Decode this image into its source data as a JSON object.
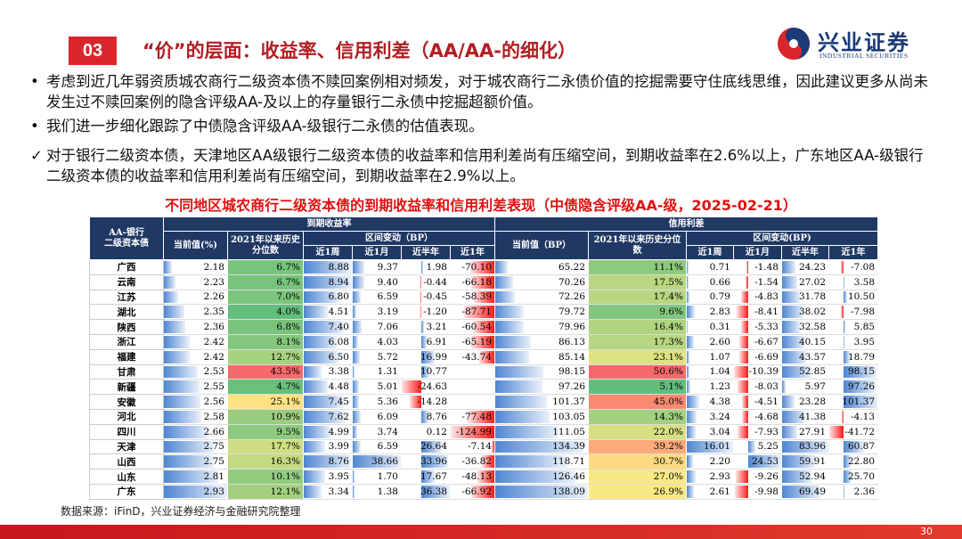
{
  "header": {
    "section_number": "03",
    "title": "“价”的层面：收益率、信用利差（AA/AA-的细化）",
    "logo_cn": "兴业证券",
    "logo_en": "INDUSTRIAL SECURITIES"
  },
  "bullets": [
    {
      "marker": "•",
      "text": "考虑到近几年弱资质城农商行二级资本债不赎回案例相对频发，对于城农商行二永债价值的挖掘需要守住底线思维，因此建议更多从尚未发生过不赎回案例的隐含评级AA-及以上的存量银行二永债中挖掘超额价值。"
    },
    {
      "marker": "•",
      "text": "我们进一步细化跟踪了中债隐含评级AA-级银行二永债的估值表现。"
    },
    {
      "marker": "✓",
      "text": "对于银行二级资本债，天津地区AA级银行二级资本债的收益率和信用利差尚有压缩空间，到期收益率在2.6%以上，广东地区AA-级银行二级资本债的收益率和信用利差尚有压缩空间，到期收益率在2.9%以上。"
    }
  ],
  "table": {
    "caption": "不同地区城农商行二级资本债的到期收益率和信用利差表现（中债隐含评级AA-级，2025-02-21）",
    "corner": [
      "AA-银行",
      "二级资本债"
    ],
    "group_yield": "到期收益率",
    "group_spread": "信用利差",
    "yield_cols": [
      "当前值(%)",
      "2021年以来历史分位数"
    ],
    "yield_change": "区间变动（BP）",
    "yield_periods": [
      "近1周",
      "近1月",
      "近半年",
      "近1年"
    ],
    "spread_cols": [
      "当前值（BP）",
      "2021年以来历史分位数"
    ],
    "spread_change": "区间变动(BP)",
    "spread_periods": [
      "近1周",
      "近1月",
      "近半年",
      "近1年"
    ],
    "rows": [
      [
        "广西",
        "2.18",
        "6.7%",
        "8.88",
        "9.37",
        "1.98",
        "-70.10",
        "65.22",
        "11.1%",
        "0.71",
        "-1.48",
        "24.23",
        "-7.08"
      ],
      [
        "云南",
        "2.23",
        "6.7%",
        "8.94",
        "9.40",
        "-0.44",
        "-66.18",
        "70.26",
        "17.5%",
        "0.66",
        "-1.54",
        "27.02",
        "3.58"
      ],
      [
        "江苏",
        "2.26",
        "7.0%",
        "6.80",
        "6.59",
        "-0.45",
        "-58.39",
        "72.26",
        "17.4%",
        "0.79",
        "-4.83",
        "31.78",
        "10.50"
      ],
      [
        "湖北",
        "2.35",
        "4.0%",
        "4.51",
        "3.19",
        "-1.20",
        "-87.71",
        "79.72",
        "9.6%",
        "2.83",
        "-8.41",
        "38.02",
        "-7.98"
      ],
      [
        "陕西",
        "2.36",
        "6.8%",
        "7.40",
        "7.06",
        "3.21",
        "-60.54",
        "79.96",
        "16.4%",
        "0.31",
        "-5.33",
        "32.58",
        "5.85"
      ],
      [
        "浙江",
        "2.42",
        "8.1%",
        "6.08",
        "4.03",
        "6.91",
        "-65.19",
        "86.13",
        "17.3%",
        "2.60",
        "-6.67",
        "40.15",
        "3.95"
      ],
      [
        "福建",
        "2.42",
        "12.7%",
        "6.50",
        "5.72",
        "16.99",
        "-43.74",
        "85.14",
        "23.1%",
        "1.07",
        "-6.69",
        "43.57",
        "18.79"
      ],
      [
        "甘肃",
        "2.53",
        "43.5%",
        "3.38",
        "1.31",
        "10.77",
        null,
        "98.15",
        "50.6%",
        "1.04",
        "-10.39",
        "52.85",
        "98.15"
      ],
      [
        "新疆",
        "2.55",
        "4.7%",
        "4.48",
        "5.01",
        "-24.63",
        null,
        "97.26",
        "5.1%",
        "1.23",
        "-8.03",
        "5.97",
        "97.26"
      ],
      [
        "安徽",
        "2.56",
        "25.1%",
        "7.45",
        "5.36",
        "-14.28",
        null,
        "101.37",
        "45.0%",
        "4.38",
        "-4.51",
        "23.28",
        "101.37"
      ],
      [
        "河北",
        "2.58",
        "10.9%",
        "7.62",
        "6.09",
        "8.76",
        "-77.48",
        "103.05",
        "14.3%",
        "3.24",
        "-4.68",
        "41.38",
        "-4.13"
      ],
      [
        "四川",
        "2.66",
        "9.5%",
        "4.99",
        "3.74",
        "0.12",
        "-124.99",
        "111.05",
        "22.0%",
        "3.04",
        "-7.93",
        "27.91",
        "-41.72"
      ],
      [
        "天津",
        "2.75",
        "17.7%",
        "3.99",
        "6.59",
        "26.64",
        "-7.14",
        "134.39",
        "39.2%",
        "16.01",
        "5.25",
        "83.96",
        "60.87"
      ],
      [
        "山西",
        "2.75",
        "16.3%",
        "8.76",
        "38.66",
        "33.96",
        "-36.82",
        "118.71",
        "30.7%",
        "2.20",
        "24.53",
        "59.91",
        "22.80"
      ],
      [
        "山东",
        "2.81",
        "10.1%",
        "3.95",
        "1.70",
        "17.67",
        "-48.13",
        "126.46",
        "27.0%",
        "2.93",
        "-9.26",
        "52.94",
        "25.70"
      ],
      [
        "广东",
        "2.93",
        "12.1%",
        "3.34",
        "1.38",
        "36.38",
        "-66.92",
        "138.09",
        "26.9%",
        "2.61",
        "-9.98",
        "69.49",
        "2.36"
      ]
    ]
  },
  "footer": {
    "source": "数据来源：iFinD，兴业证券经济与金融研究院整理",
    "page": "30"
  }
}
